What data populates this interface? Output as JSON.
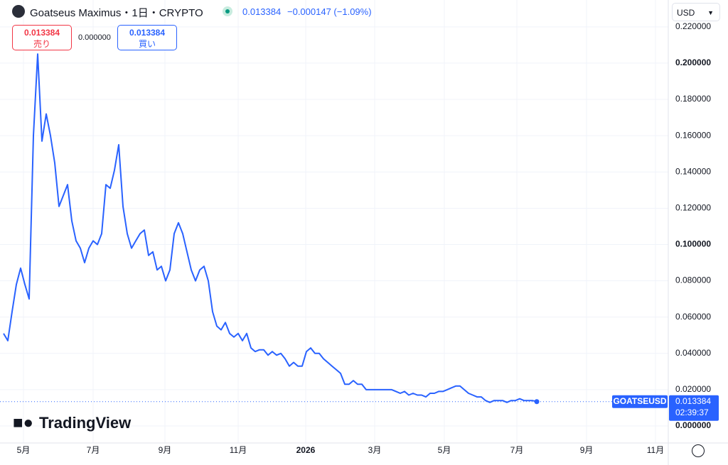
{
  "header": {
    "symbol": "Goatseus Maximus・1日・CRYPTO",
    "price": "0.013384",
    "change": "−0.000147 (−1.09%)",
    "currency": "USD"
  },
  "trade": {
    "sell_price": "0.013384",
    "sell_label": "売り",
    "spread": "0.000000",
    "buy_price": "0.013384",
    "buy_label": "買い"
  },
  "logo": "TradingView",
  "countdown": "02:39:37",
  "chart_data": {
    "type": "line",
    "series": [
      {
        "name": "GOATSEUSD",
        "color": "#2962ff",
        "values": [
          0.051,
          0.047,
          0.063,
          0.078,
          0.087,
          0.078,
          0.07,
          0.16,
          0.205,
          0.157,
          0.172,
          0.16,
          0.145,
          0.121,
          0.127,
          0.133,
          0.113,
          0.102,
          0.098,
          0.09,
          0.098,
          0.102,
          0.1,
          0.106,
          0.133,
          0.131,
          0.141,
          0.155,
          0.121,
          0.106,
          0.098,
          0.102,
          0.106,
          0.108,
          0.094,
          0.096,
          0.086,
          0.088,
          0.08,
          0.086,
          0.106,
          0.112,
          0.106,
          0.096,
          0.086,
          0.08,
          0.086,
          0.088,
          0.08,
          0.063,
          0.055,
          0.053,
          0.057,
          0.051,
          0.049,
          0.051,
          0.047,
          0.051,
          0.043,
          0.041,
          0.042,
          0.042,
          0.039,
          0.041,
          0.039,
          0.04,
          0.037,
          0.033,
          0.035,
          0.033,
          0.033,
          0.041,
          0.043,
          0.04,
          0.04,
          0.037,
          0.035,
          0.033,
          0.031,
          0.029,
          0.023,
          0.023,
          0.025,
          0.023,
          0.023,
          0.02,
          0.02,
          0.02,
          0.02,
          0.02,
          0.02,
          0.02,
          0.019,
          0.018,
          0.019,
          0.017,
          0.018,
          0.017,
          0.017,
          0.016,
          0.018,
          0.018,
          0.019,
          0.019,
          0.02,
          0.021,
          0.022,
          0.022,
          0.02,
          0.018,
          0.017,
          0.016,
          0.016,
          0.014,
          0.013,
          0.014,
          0.014,
          0.014,
          0.013,
          0.014,
          0.014,
          0.015,
          0.014,
          0.014,
          0.014,
          0.013384
        ]
      }
    ],
    "xlim": [
      -0.83,
      155.83
    ],
    "xticks": [
      {
        "value": 4.67,
        "label": "5月"
      },
      {
        "value": 21,
        "label": "7月"
      },
      {
        "value": 37.83,
        "label": "9月"
      },
      {
        "value": 55,
        "label": "11月"
      },
      {
        "value": 70.83,
        "label": "2026"
      },
      {
        "value": 87,
        "label": "3月"
      },
      {
        "value": 103.33,
        "label": "5月"
      },
      {
        "value": 120.33,
        "label": "7月"
      },
      {
        "value": 136.67,
        "label": "9月"
      },
      {
        "value": 152.83,
        "label": "11月"
      }
    ],
    "ylim": [
      -0.0094,
      0.2348
    ],
    "yticks": [
      {
        "value": 0,
        "label": "0.000000"
      },
      {
        "value": 0.02,
        "label": "0.020000"
      },
      {
        "value": 0.04,
        "label": "0.040000"
      },
      {
        "value": 0.06,
        "label": "0.060000"
      },
      {
        "value": 0.08,
        "label": "0.080000"
      },
      {
        "value": 0.1,
        "label": "0.100000"
      },
      {
        "value": 0.12,
        "label": "0.120000"
      },
      {
        "value": 0.14,
        "label": "0.140000"
      },
      {
        "value": 0.16,
        "label": "0.160000"
      },
      {
        "value": 0.18,
        "label": "0.180000"
      },
      {
        "value": 0.2,
        "label": "0.200000"
      },
      {
        "value": 0.22,
        "label": "0.220000"
      }
    ],
    "grid": true
  }
}
